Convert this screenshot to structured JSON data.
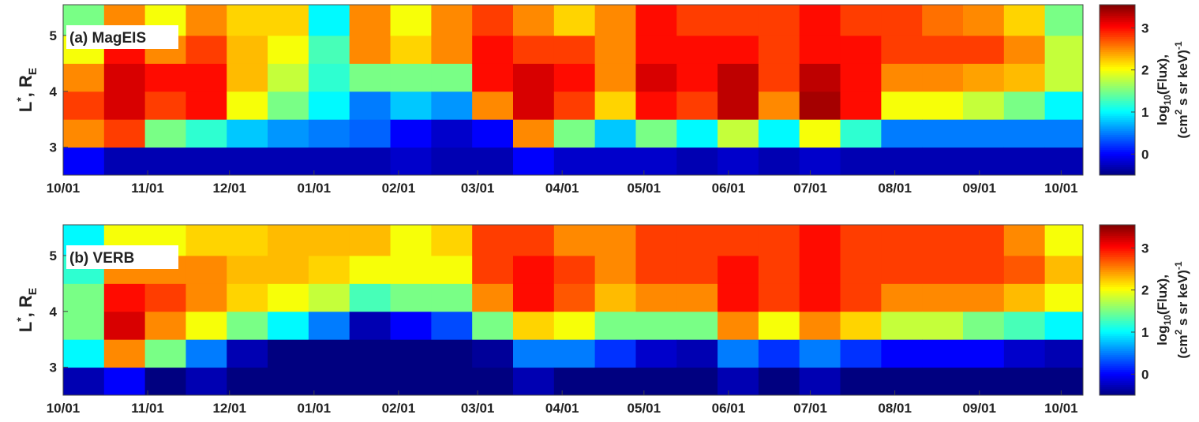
{
  "chart_data": [
    {
      "type": "heatmap",
      "panel_label": "(a) MagEIS",
      "ylabel": {
        "main": "L",
        "sup": "*",
        "mid": ", R",
        "sub": "E"
      },
      "xlim": [
        0,
        374
      ],
      "ylim": [
        2.5,
        5.55
      ],
      "xticks": [
        {
          "value": 0,
          "label": "10/01"
        },
        {
          "value": 31,
          "label": "11/01"
        },
        {
          "value": 61,
          "label": "12/01"
        },
        {
          "value": 92,
          "label": "01/01"
        },
        {
          "value": 123,
          "label": "02/01"
        },
        {
          "value": 152,
          "label": "03/01"
        },
        {
          "value": 183,
          "label": "04/01"
        },
        {
          "value": 213,
          "label": "05/01"
        },
        {
          "value": 244,
          "label": "06/01"
        },
        {
          "value": 274,
          "label": "07/01"
        },
        {
          "value": 305,
          "label": "08/01"
        },
        {
          "value": 336,
          "label": "09/01"
        },
        {
          "value": 366,
          "label": "10/01"
        }
      ],
      "yticks": [
        3,
        4,
        5
      ],
      "xbins": [
        0,
        15,
        30,
        45,
        60,
        75,
        90,
        105,
        120,
        135,
        150,
        165,
        180,
        195,
        210,
        225,
        240,
        255,
        270,
        285,
        300,
        315,
        330,
        345,
        360,
        374
      ],
      "ybins": [
        2.5,
        3,
        3.5,
        4,
        4.5,
        5,
        5.55
      ],
      "z": [
        [
          0,
          2.5,
          2.8,
          2.5,
          2,
          1.5
        ],
        [
          -0.3,
          2.8,
          3.2,
          3.2,
          3,
          2.5
        ],
        [
          -0.3,
          1.5,
          2.8,
          3,
          2.5,
          2
        ],
        [
          -0.3,
          1.2,
          3,
          3,
          2.8,
          2.5
        ],
        [
          -0.3,
          0.8,
          2,
          2.3,
          2.3,
          2.2
        ],
        [
          -0.3,
          0.6,
          1.5,
          1.8,
          2,
          2.2
        ],
        [
          -0.3,
          0.5,
          1,
          1.2,
          1.3,
          1
        ],
        [
          -0.3,
          0.4,
          0.5,
          1.5,
          2.5,
          2.5
        ],
        [
          -0.2,
          0,
          0.8,
          1.5,
          2.2,
          2
        ],
        [
          -0.3,
          -0.2,
          0.6,
          1.5,
          2.5,
          2.5
        ],
        [
          -0.3,
          0,
          2.5,
          3,
          3,
          2.8
        ],
        [
          0,
          2.5,
          3.2,
          3.2,
          2.8,
          2.5
        ],
        [
          -0.2,
          1.5,
          2.8,
          3,
          2.8,
          2.2
        ],
        [
          -0.2,
          0.8,
          2.2,
          2.5,
          2.5,
          2.5
        ],
        [
          -0.2,
          1.5,
          3,
          3.2,
          3,
          3
        ],
        [
          -0.3,
          1,
          2.8,
          3,
          3,
          2.8
        ],
        [
          -0.2,
          1.8,
          3.3,
          3.3,
          3,
          2.8
        ],
        [
          -0.3,
          1,
          2.5,
          2.8,
          2.8,
          2.8
        ],
        [
          -0.2,
          2,
          3.4,
          3.3,
          3,
          3
        ],
        [
          -0.3,
          1.2,
          3,
          3,
          3,
          2.8
        ],
        [
          -0.3,
          0.5,
          2,
          2.5,
          2.8,
          2.8
        ],
        [
          -0.3,
          0.5,
          2,
          2.5,
          2.8,
          2.6
        ],
        [
          -0.3,
          0.5,
          1.8,
          2.4,
          2.8,
          2.5
        ],
        [
          -0.3,
          0.5,
          1.5,
          2.3,
          2.5,
          2.2
        ],
        [
          -0.3,
          0.5,
          1,
          1.8,
          1.8,
          1.5
        ]
      ],
      "colorbar": {
        "lim": [
          -0.5,
          3.55
        ],
        "ticks": [
          0,
          1,
          2,
          3
        ],
        "label_line1": {
          "a": "log",
          "b": "10",
          "c": "(Flux),"
        },
        "label_line2": {
          "a": "(cm",
          "b": "2",
          "c": " s sr keV)",
          "d": "-1"
        }
      }
    },
    {
      "type": "heatmap",
      "panel_label": "(b) VERB",
      "ylabel": {
        "main": "L",
        "sup": "*",
        "mid": ", R",
        "sub": "E"
      },
      "xlim": [
        0,
        374
      ],
      "ylim": [
        2.5,
        5.55
      ],
      "xticks": [
        {
          "value": 0,
          "label": "10/01"
        },
        {
          "value": 31,
          "label": "11/01"
        },
        {
          "value": 61,
          "label": "12/01"
        },
        {
          "value": 92,
          "label": "01/01"
        },
        {
          "value": 123,
          "label": "02/01"
        },
        {
          "value": 152,
          "label": "03/01"
        },
        {
          "value": 183,
          "label": "04/01"
        },
        {
          "value": 213,
          "label": "05/01"
        },
        {
          "value": 244,
          "label": "06/01"
        },
        {
          "value": 274,
          "label": "07/01"
        },
        {
          "value": 305,
          "label": "08/01"
        },
        {
          "value": 336,
          "label": "09/01"
        },
        {
          "value": 366,
          "label": "10/01"
        }
      ],
      "yticks": [
        3,
        4,
        5
      ],
      "xbins": [
        0,
        15,
        30,
        45,
        60,
        75,
        90,
        105,
        120,
        135,
        150,
        165,
        180,
        195,
        210,
        225,
        240,
        255,
        270,
        285,
        300,
        315,
        330,
        345,
        360,
        374
      ],
      "ybins": [
        2.5,
        3,
        3.5,
        4,
        4.5,
        5,
        5.55
      ],
      "z": [
        [
          -0.3,
          1,
          1.5,
          1.5,
          1.2,
          1
        ],
        [
          0,
          2.5,
          3.2,
          3,
          2.5,
          2
        ],
        [
          -0.5,
          1.5,
          2.5,
          2.8,
          2.5,
          2
        ],
        [
          -0.3,
          0.5,
          2,
          2.5,
          2.5,
          2.2
        ],
        [
          -0.5,
          -0.3,
          1.5,
          2.2,
          2.3,
          2.2
        ],
        [
          -0.5,
          -0.5,
          1,
          2,
          2.3,
          2.3
        ],
        [
          -0.5,
          -0.5,
          0.5,
          1.8,
          2.2,
          2.3
        ],
        [
          -0.5,
          -0.5,
          -0.3,
          1.3,
          2,
          2.3
        ],
        [
          -0.5,
          -0.5,
          0,
          1.5,
          2,
          2
        ],
        [
          -0.5,
          -0.5,
          0.3,
          1.5,
          2,
          2.2
        ],
        [
          -0.5,
          -0.4,
          1.5,
          2.5,
          2.8,
          2.8
        ],
        [
          -0.3,
          0.5,
          2.2,
          3,
          3,
          2.8
        ],
        [
          -0.5,
          0.5,
          2,
          2.7,
          2.8,
          2.5
        ],
        [
          -0.5,
          0.2,
          1.5,
          2.3,
          2.5,
          2.5
        ],
        [
          -0.5,
          -0.2,
          1.5,
          2.5,
          2.8,
          2.8
        ],
        [
          -0.5,
          -0.3,
          1.5,
          2.5,
          2.8,
          2.8
        ],
        [
          -0.3,
          0.5,
          2.5,
          3,
          3,
          2.8
        ],
        [
          -0.5,
          0.2,
          2,
          2.8,
          2.8,
          2.8
        ],
        [
          -0.3,
          0.5,
          2.5,
          3,
          3,
          3
        ],
        [
          -0.5,
          0.2,
          2.2,
          2.8,
          2.8,
          2.8
        ],
        [
          -0.5,
          0,
          1.8,
          2.5,
          2.8,
          2.8
        ],
        [
          -0.5,
          0,
          1.8,
          2.5,
          2.8,
          2.8
        ],
        [
          -0.5,
          0,
          1.5,
          2.5,
          2.8,
          2.8
        ],
        [
          -0.5,
          -0.2,
          1.3,
          2.3,
          2.7,
          2.5
        ],
        [
          -0.5,
          -0.3,
          1,
          2,
          2.3,
          2
        ]
      ],
      "colorbar": {
        "lim": [
          -0.5,
          3.55
        ],
        "ticks": [
          0,
          1,
          2,
          3
        ],
        "label_line1": {
          "a": "log",
          "b": "10",
          "c": "(Flux),"
        },
        "label_line2": {
          "a": "(cm",
          "b": "2",
          "c": " s sr keV)",
          "d": "-1"
        }
      }
    }
  ]
}
